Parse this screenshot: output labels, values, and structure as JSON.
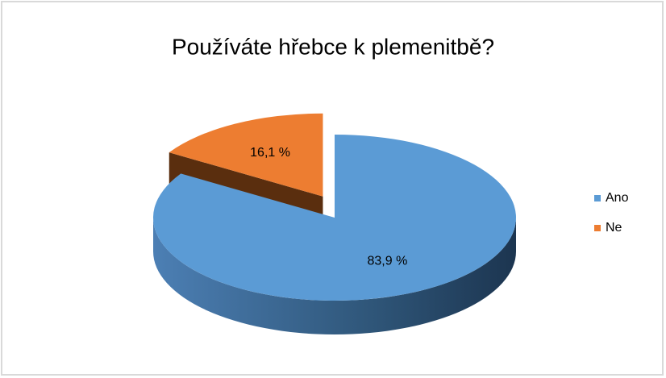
{
  "chart_data": {
    "type": "pie3d",
    "title": "Používáte hřebce k plemenitbě?",
    "categories": [
      "Ano",
      "Ne"
    ],
    "values": [
      83.9,
      16.1
    ],
    "value_labels": [
      "83,9 %",
      "16,1 %"
    ],
    "colors": [
      "#5b9bd5",
      "#ed7d31"
    ],
    "legend": "right"
  }
}
